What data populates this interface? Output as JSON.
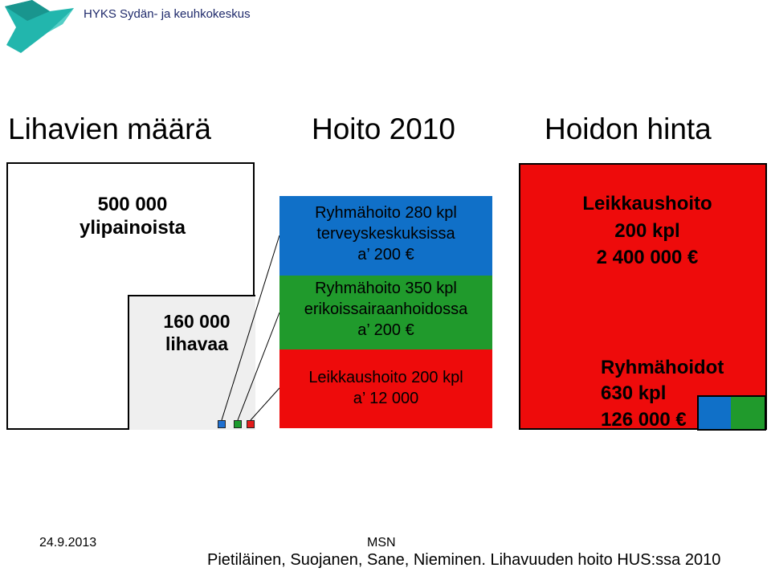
{
  "header": {
    "org_name": "HYKS Sydän- ja keuhkokeskus",
    "logo_icon": "hus-logo-icon"
  },
  "columns": {
    "left_title": "Lihavien määrä",
    "middle_title": "Hoito 2010",
    "right_title": "Hoidon hinta"
  },
  "left": {
    "big_box_text": [
      "500 000",
      "ylipainoista"
    ],
    "small_box_text": [
      "160 000",
      "lihavaa"
    ]
  },
  "middle": {
    "blue": [
      "Ryhmähoito 280 kpl",
      "terveyskeskuksissa",
      "a’ 200 €"
    ],
    "green": [
      "Ryhmähoito 350 kpl",
      "erikoissairaanhoidossa",
      "a’ 200 €"
    ],
    "red": [
      "Leikkaushoito 200 kpl",
      "a’ 12 000"
    ]
  },
  "right": {
    "surgery": [
      "Leikkaushoito",
      "200 kpl",
      "2 400 000 €"
    ],
    "group": [
      "Ryhmähoidot",
      "630 kpl",
      "126 000 €"
    ]
  },
  "colors": {
    "blue": "#1070c8",
    "green": "#209a2c",
    "red": "#ee0b0b",
    "grey": "#efefef"
  },
  "footer": {
    "date": "24.9.2013",
    "center": "MSN",
    "citation": "Pietiläinen, Suojanen, Sane, Nieminen. Lihavuuden hoito HUS:ssa 2010"
  }
}
